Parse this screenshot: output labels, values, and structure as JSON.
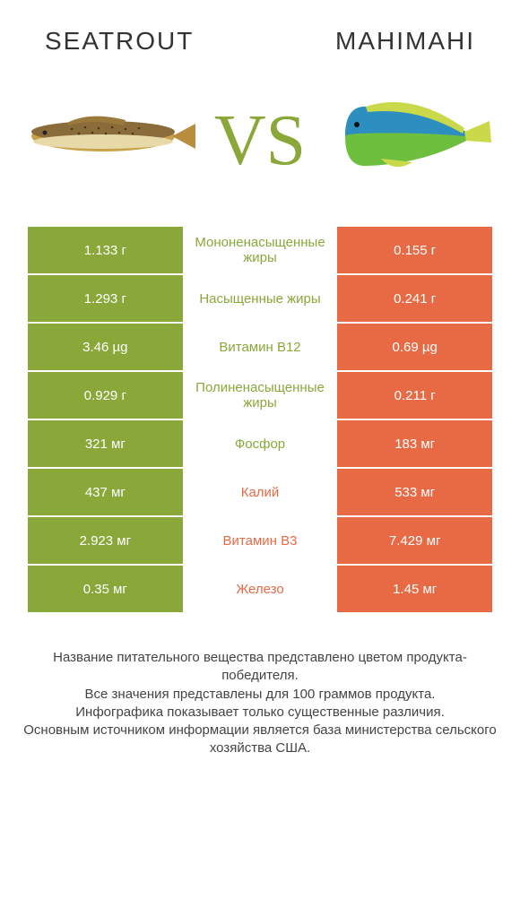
{
  "colors": {
    "green": "#8aa83a",
    "orange": "#e86a45",
    "text": "#333333",
    "background": "#ffffff"
  },
  "header": {
    "left_title": "SEATROUT",
    "right_title": "MAHIMAHI",
    "vs_label": "VS"
  },
  "rows": [
    {
      "left": "1.133 г",
      "label": "Мононенасыщенные жиры",
      "right": "0.155 г",
      "winner": "left"
    },
    {
      "left": "1.293 г",
      "label": "Насыщенные жиры",
      "right": "0.241 г",
      "winner": "left"
    },
    {
      "left": "3.46 µg",
      "label": "Витамин B12",
      "right": "0.69 µg",
      "winner": "left"
    },
    {
      "left": "0.929 г",
      "label": "Полиненасыщенные жиры",
      "right": "0.211 г",
      "winner": "left"
    },
    {
      "left": "321 мг",
      "label": "Фосфор",
      "right": "183 мг",
      "winner": "left"
    },
    {
      "left": "437 мг",
      "label": "Калий",
      "right": "533 мг",
      "winner": "right"
    },
    {
      "left": "2.923 мг",
      "label": "Витамин B3",
      "right": "7.429 мг",
      "winner": "right"
    },
    {
      "left": "0.35 мг",
      "label": "Железо",
      "right": "1.45 мг",
      "winner": "right"
    }
  ],
  "footer": {
    "line1": "Название питательного вещества представлено цветом продукта-победителя.",
    "line2": "Все значения представлены для 100 граммов продукта.",
    "line3": "Инфографика показывает только существенные различия.",
    "line4": "Основным источником информации является база министерства сельского хозяйства США."
  }
}
